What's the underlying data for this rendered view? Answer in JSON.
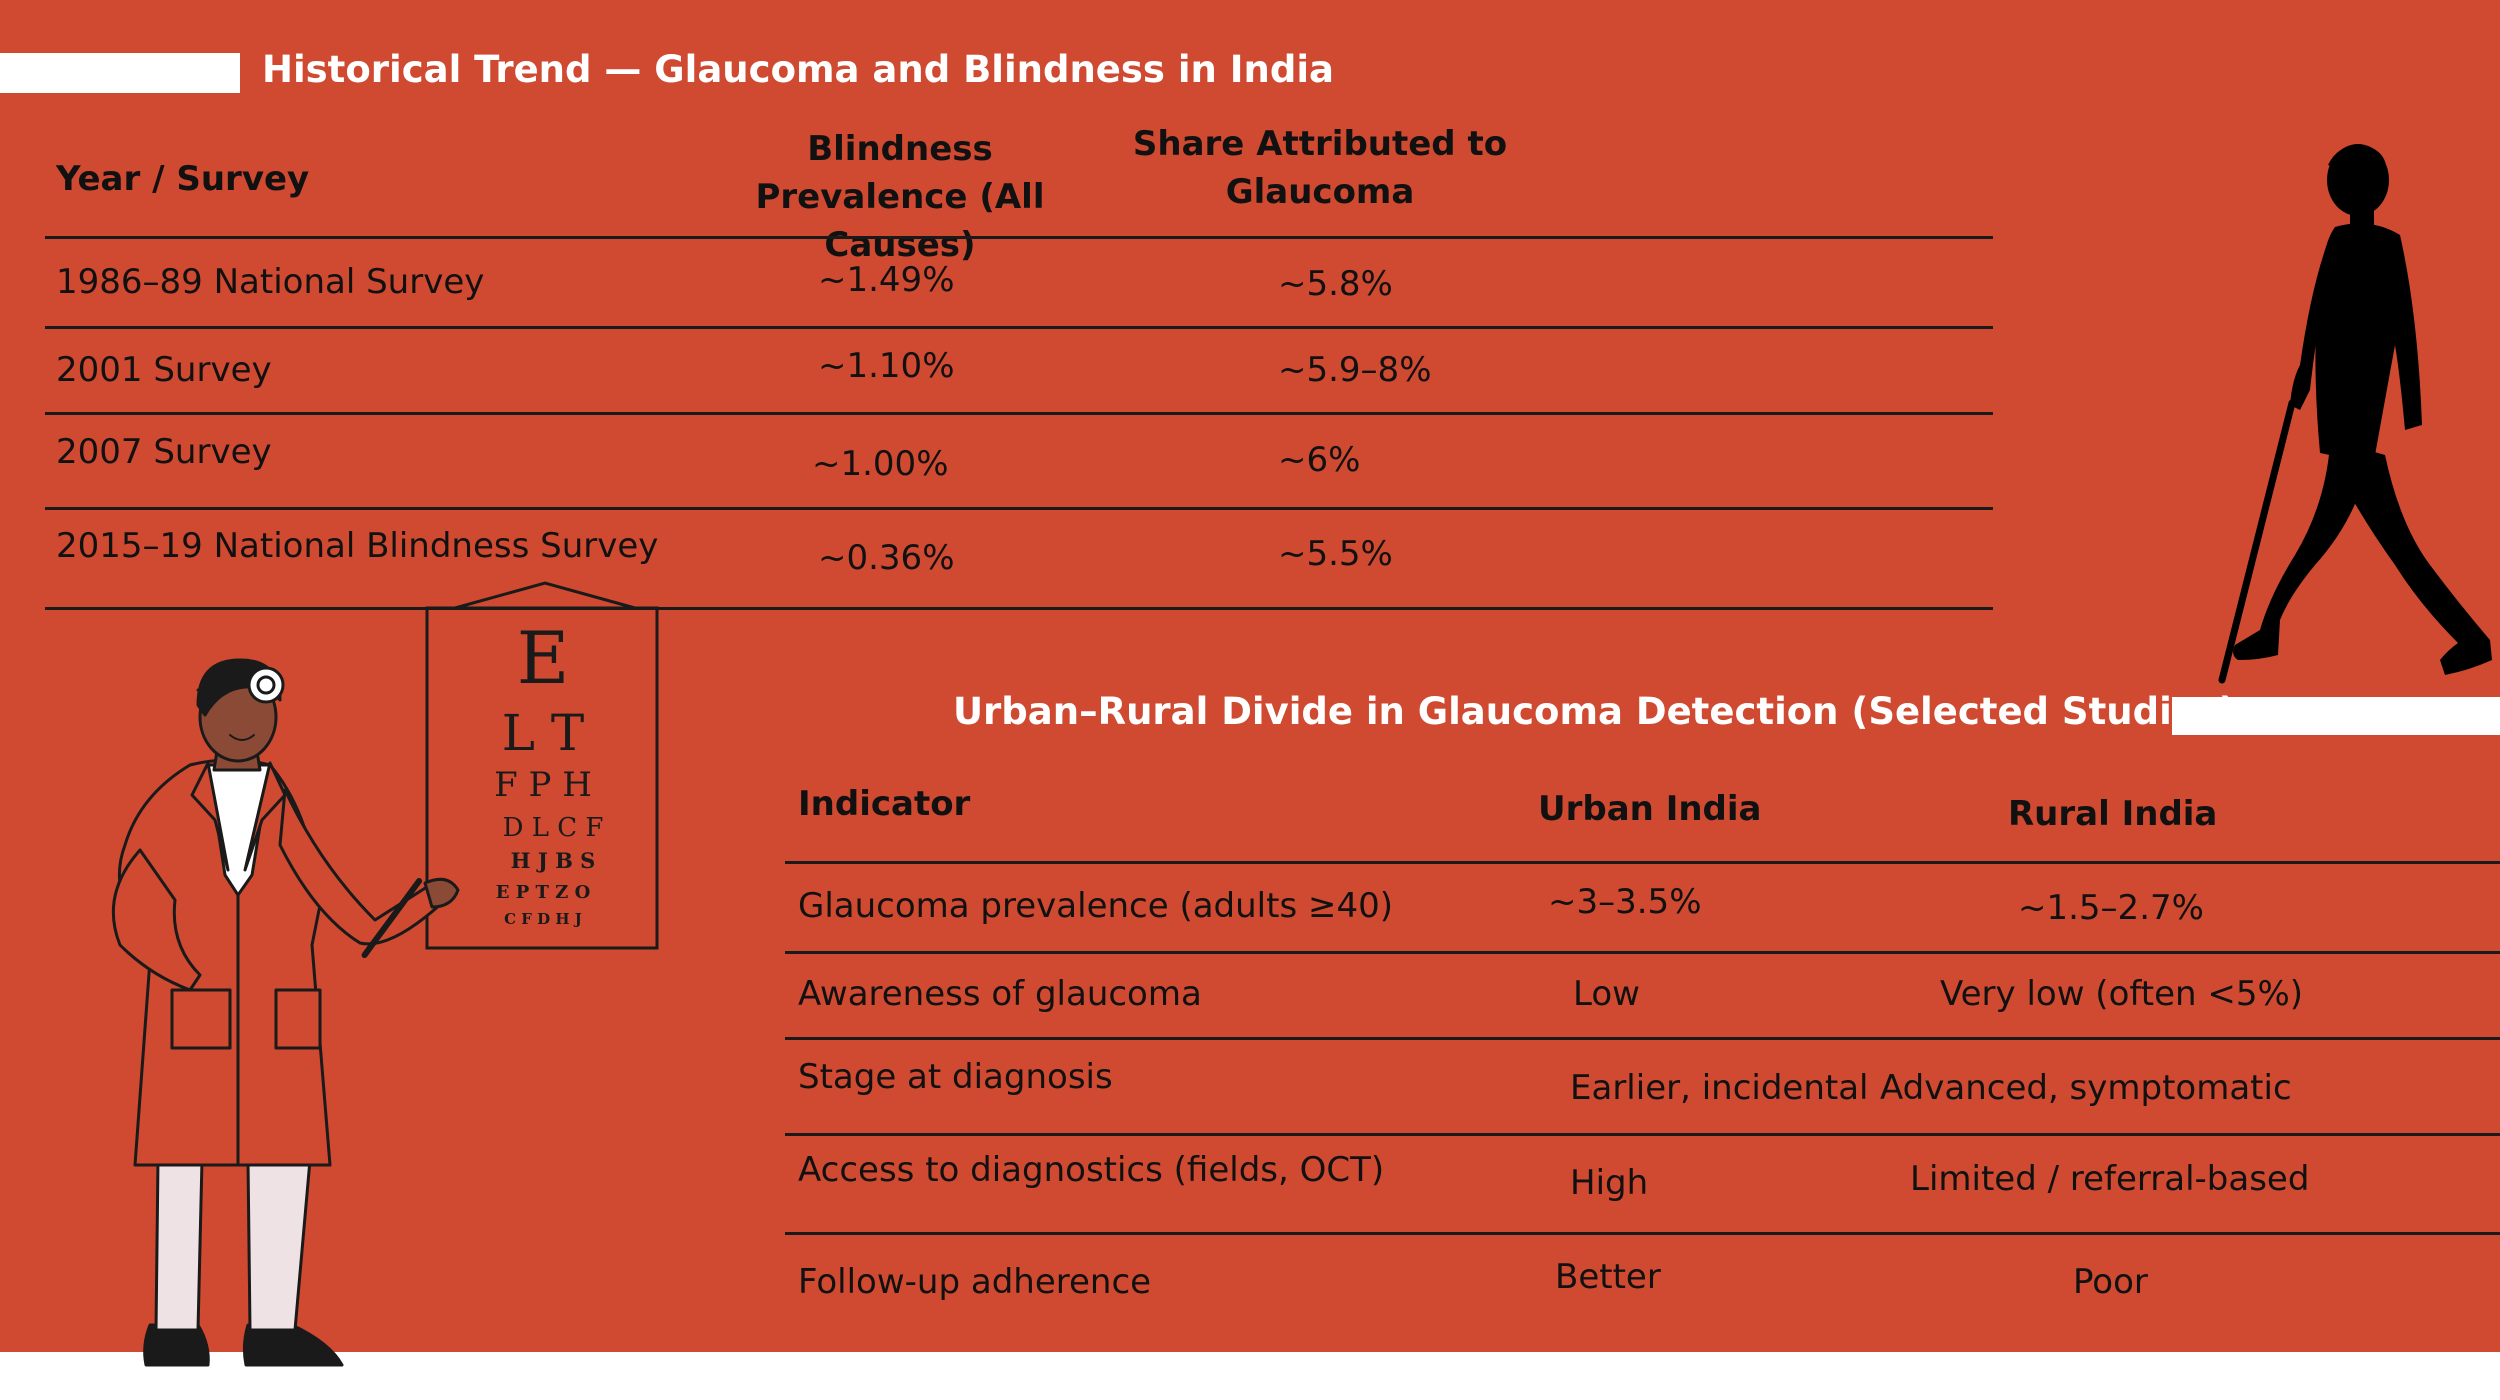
{
  "historical": {
    "title": "Historical Trend — Glaucoma and Blindness in India",
    "headers": {
      "year": "Year / Survey",
      "prevalence": "Blindness Prevalence (All Causes)",
      "share": "Share Attributed to Glaucoma"
    },
    "rows": [
      {
        "year": "1986–89 National Survey",
        "prevalence": "~1.49%",
        "share": "~5.8%"
      },
      {
        "year": "2001 Survey",
        "prevalence": "~1.10%",
        "share": "~5.9–8%"
      },
      {
        "year": "2007 Survey",
        "prevalence": "~1.00%",
        "share": "~6%"
      },
      {
        "year": "2015–19 National Blindness Survey",
        "prevalence": "~0.36%",
        "share": "~5.5%"
      }
    ]
  },
  "urban_rural": {
    "title": "Urban–Rural Divide in Glaucoma Detection (Selected Studies)",
    "headers": {
      "indicator": "Indicator",
      "urban": "Urban India",
      "rural": "Rural India"
    },
    "rows": [
      {
        "indicator": "Glaucoma prevalence (adults ≥40)",
        "urban": "~3–3.5%",
        "rural": "~1.5–2.7%"
      },
      {
        "indicator": "Awareness of glaucoma",
        "urban": "Low",
        "rural": "Very low (often <5%)"
      },
      {
        "indicator": "Stage at diagnosis",
        "urban": "Earlier, incidental",
        "rural": "Advanced, symptomatic"
      },
      {
        "indicator": "Access to diagnostics (fields, OCT)",
        "urban": "High",
        "rural": "Limited / referral-based"
      },
      {
        "indicator": "Follow-up adherence",
        "urban": "Better",
        "rural": "Poor"
      }
    ]
  },
  "eye_chart": {
    "rows": [
      "E",
      "L T",
      "F P H",
      "D L C F",
      "H J B S",
      "E P T Z O",
      "C F D H J"
    ]
  },
  "colors": {
    "background": "#cf4a30",
    "accent": "#ffffff",
    "text": "#111111"
  }
}
